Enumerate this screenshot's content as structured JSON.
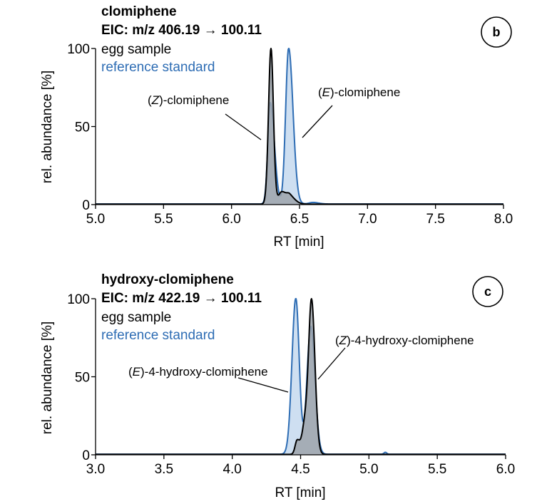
{
  "chart_data": [
    {
      "type": "line",
      "panel_label": "b",
      "title": "clomiphene",
      "subtitle_prefix": "EIC: m/z 406.19",
      "subtitle_arrow": "→",
      "subtitle_suffix": "100.11",
      "legend": [
        {
          "name": "egg sample",
          "color": "#000000"
        },
        {
          "name": "reference standard",
          "color": "#2e6db4"
        }
      ],
      "xlabel": "RT [min]",
      "ylabel": "rel. abundance [%]",
      "xlim": [
        5.0,
        8.0
      ],
      "ylim": [
        0,
        100
      ],
      "xticks": [
        5.0,
        5.5,
        6.0,
        6.5,
        7.0,
        7.5,
        8.0
      ],
      "xtick_labels": [
        "5.0",
        "5.5",
        "6.0",
        "6.5",
        "7.0",
        "7.5",
        "8.0"
      ],
      "yticks": [
        0,
        50,
        100
      ],
      "ytick_labels": [
        "0",
        "50",
        "100"
      ],
      "annotations": [
        {
          "prefix": "(",
          "italic": "Z",
          "suffix": ")-clomiphene",
          "points_to_rt": 6.27,
          "points_to_y": 42
        },
        {
          "prefix": "(",
          "italic": "E",
          "suffix": ")-clomiphene",
          "points_to_rt": 6.42,
          "points_to_y": 45
        }
      ],
      "series": [
        {
          "name": "reference standard",
          "color": "#2e6db4",
          "fill": "#c5d9ee",
          "baseline": 0.4,
          "peaks": [
            {
              "rt": 6.285,
              "height": 65,
              "sigma_left": 0.018,
              "sigma_right": 0.03
            },
            {
              "rt": 6.42,
              "height": 100,
              "sigma_left": 0.022,
              "sigma_right": 0.032
            },
            {
              "rt": 6.6,
              "height": 1,
              "sigma_left": 0.03,
              "sigma_right": 0.04
            }
          ]
        },
        {
          "name": "egg sample",
          "color": "#000000",
          "fill": "#9ea4ab",
          "baseline": 0.3,
          "peaks": [
            {
              "rt": 6.29,
              "height": 100,
              "sigma_left": 0.018,
              "sigma_right": 0.018
            },
            {
              "rt": 6.37,
              "height": 8,
              "sigma_left": 0.025,
              "sigma_right": 0.04
            },
            {
              "rt": 6.43,
              "height": 4,
              "sigma_left": 0.02,
              "sigma_right": 0.04
            }
          ]
        }
      ]
    },
    {
      "type": "line",
      "panel_label": "c",
      "title": "hydroxy-clomiphene",
      "subtitle_prefix": "EIC: m/z 422.19",
      "subtitle_arrow": "→",
      "subtitle_suffix": "100.11",
      "legend": [
        {
          "name": "egg sample",
          "color": "#000000"
        },
        {
          "name": "reference standard",
          "color": "#2e6db4"
        }
      ],
      "xlabel": "RT [min]",
      "ylabel": "rel. abundance [%]",
      "xlim": [
        3.0,
        6.0
      ],
      "ylim": [
        0,
        100
      ],
      "xticks": [
        3.0,
        3.5,
        4.0,
        4.5,
        5.0,
        5.5,
        6.0
      ],
      "xtick_labels": [
        "3.0",
        "3.5",
        "4.0",
        "4.5",
        "5.0",
        "5.5",
        "6.0"
      ],
      "yticks": [
        0,
        50,
        100
      ],
      "ytick_labels": [
        "0",
        "50",
        "100"
      ],
      "annotations": [
        {
          "prefix": "(",
          "italic": "E",
          "suffix": ")-4-hydroxy-clomiphene",
          "points_to_rt": 4.42,
          "points_to_y": 40
        },
        {
          "prefix": "(",
          "italic": "Z",
          "suffix": ")-4-hydroxy-clomiphene",
          "points_to_rt": 4.55,
          "points_to_y": 45
        }
      ],
      "series": [
        {
          "name": "reference standard",
          "color": "#2e6db4",
          "fill": "#c5d9ee",
          "baseline": 0.4,
          "peaks": [
            {
              "rt": 4.465,
              "height": 100,
              "sigma_left": 0.028,
              "sigma_right": 0.025
            },
            {
              "rt": 4.575,
              "height": 82,
              "sigma_left": 0.028,
              "sigma_right": 0.03
            },
            {
              "rt": 5.12,
              "height": 1.2,
              "sigma_left": 0.01,
              "sigma_right": 0.01
            }
          ]
        },
        {
          "name": "egg sample",
          "color": "#000000",
          "fill": "#9ea4ab",
          "baseline": 0.3,
          "peaks": [
            {
              "rt": 4.475,
              "height": 9,
              "sigma_left": 0.015,
              "sigma_right": 0.02
            },
            {
              "rt": 4.53,
              "height": 18,
              "sigma_left": 0.02,
              "sigma_right": 0.02
            },
            {
              "rt": 4.58,
              "height": 99,
              "sigma_left": 0.022,
              "sigma_right": 0.025
            }
          ]
        }
      ]
    }
  ]
}
